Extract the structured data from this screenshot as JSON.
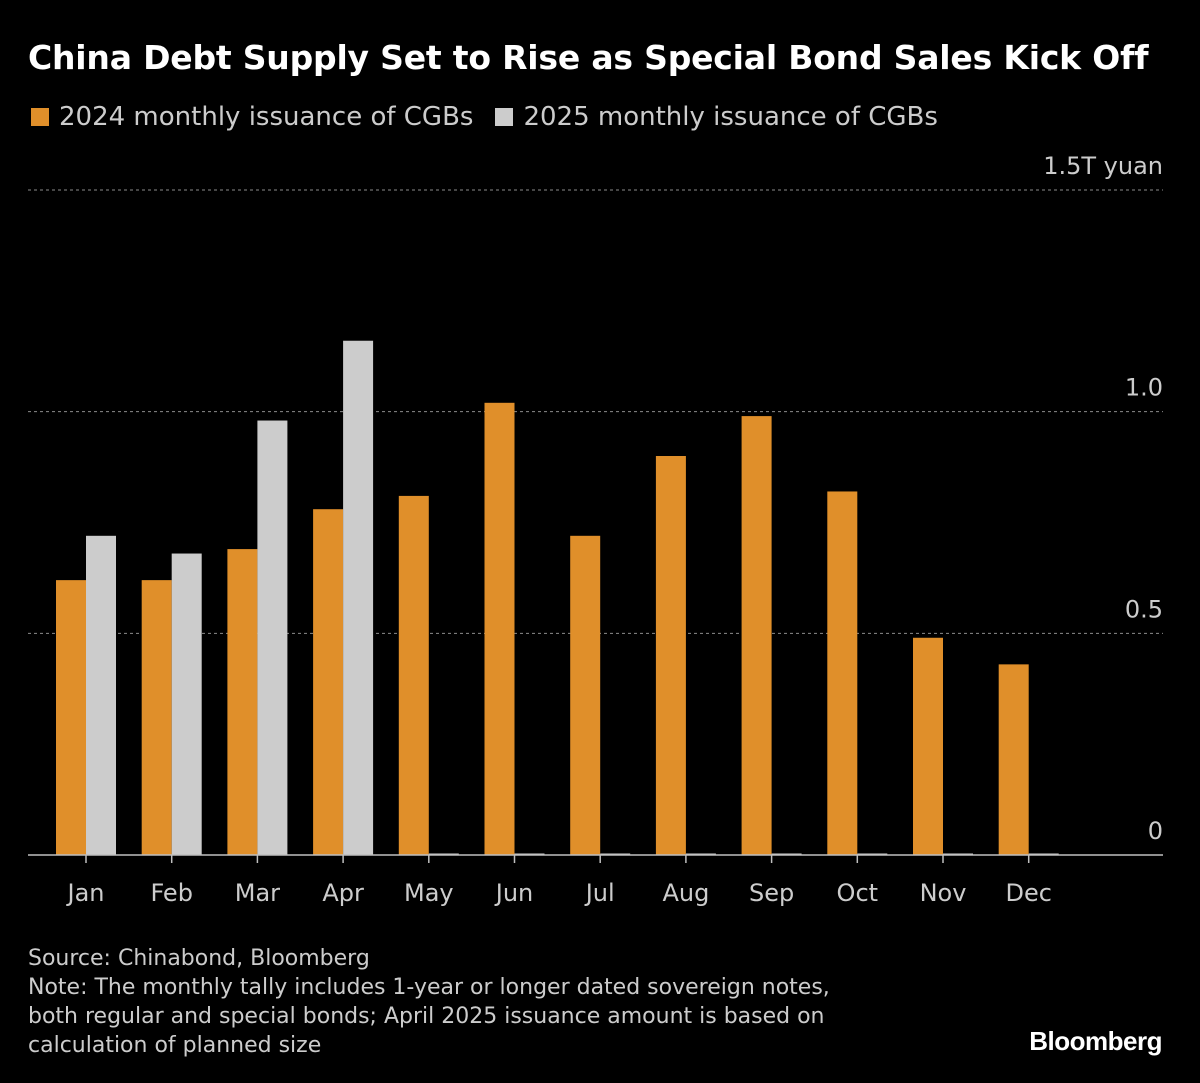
{
  "title": "China Debt Supply Set to Rise as Special Bond Sales Kick Off",
  "legend": [
    {
      "label": "2024 monthly issuance of CGBs",
      "color": "#e08f2a"
    },
    {
      "label": "2025 monthly issuance of CGBs",
      "color": "#cccccc"
    }
  ],
  "footer": {
    "source": "Source: Chinabond, Bloomberg",
    "note": "Note: The monthly tally includes 1-year or longer dated sovereign notes,\nboth regular and special bonds; April 2025 issuance amount is based on\ncalculation of planned size"
  },
  "logo": "Bloomberg",
  "chart_data": {
    "type": "bar",
    "title": "China Debt Supply Set to Rise as Special Bond Sales Kick Off",
    "categories": [
      "Jan",
      "Feb",
      "Mar",
      "Apr",
      "May",
      "Jun",
      "Jul",
      "Aug",
      "Sep",
      "Oct",
      "Nov",
      "Dec"
    ],
    "series": [
      {
        "name": "2024 monthly issuance of CGBs",
        "color": "#e08f2a",
        "values": [
          0.62,
          0.62,
          0.69,
          0.78,
          0.81,
          1.02,
          0.72,
          0.9,
          0.99,
          0.82,
          0.49,
          0.43
        ]
      },
      {
        "name": "2025 monthly issuance of CGBs",
        "color": "#cccccc",
        "values": [
          0.72,
          0.68,
          0.98,
          1.16,
          0,
          0,
          0,
          0,
          0,
          0,
          0,
          0
        ]
      }
    ],
    "yticks": [
      {
        "value": 0,
        "label": "0"
      },
      {
        "value": 0.5,
        "label": "0.5"
      },
      {
        "value": 1.0,
        "label": "1.0"
      },
      {
        "value": 1.5,
        "label": "1.5T yuan"
      }
    ],
    "ylim": [
      0,
      1.5
    ],
    "grid": true,
    "legend_position": "top-left"
  }
}
